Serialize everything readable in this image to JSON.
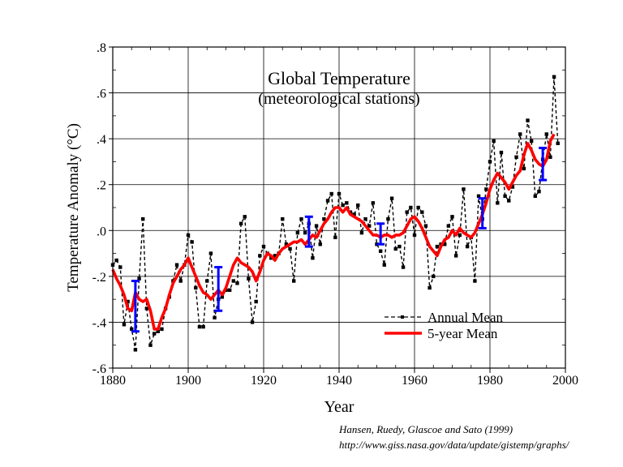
{
  "chart_data": {
    "type": "line",
    "title": "Global Temperature",
    "subtitle": "(meteorological stations)",
    "xlabel": "Year",
    "ylabel": "Temperature Anomaly (°C)",
    "xlim": [
      1880,
      2000
    ],
    "ylim": [
      -0.6,
      0.8
    ],
    "x_ticks": [
      "1880",
      "1900",
      "1920",
      "1940",
      "1960",
      "1980",
      "2000"
    ],
    "x_tick_values": [
      1880,
      1900,
      1920,
      1940,
      1960,
      1980,
      2000
    ],
    "y_ticks": [
      "-.6",
      "-.4",
      "-.2",
      ".0",
      ".2",
      ".4",
      ".6",
      ".8"
    ],
    "y_tick_values": [
      -0.6,
      -0.4,
      -0.2,
      0.0,
      0.2,
      0.4,
      0.6,
      0.8
    ],
    "grid": true,
    "legend_position": "bottom-right",
    "series": [
      {
        "name": "Annual Mean",
        "color": "#000000",
        "style": "dashed-with-square-markers",
        "x": [
          1880,
          1881,
          1882,
          1883,
          1884,
          1885,
          1886,
          1887,
          1888,
          1889,
          1890,
          1891,
          1892,
          1893,
          1894,
          1895,
          1896,
          1897,
          1898,
          1899,
          1900,
          1901,
          1902,
          1903,
          1904,
          1905,
          1906,
          1907,
          1908,
          1909,
          1910,
          1911,
          1912,
          1913,
          1914,
          1915,
          1916,
          1917,
          1918,
          1919,
          1920,
          1921,
          1922,
          1923,
          1924,
          1925,
          1926,
          1927,
          1928,
          1929,
          1930,
          1931,
          1932,
          1933,
          1934,
          1935,
          1936,
          1937,
          1938,
          1939,
          1940,
          1941,
          1942,
          1943,
          1944,
          1945,
          1946,
          1947,
          1948,
          1949,
          1950,
          1951,
          1952,
          1953,
          1954,
          1955,
          1956,
          1957,
          1958,
          1959,
          1960,
          1961,
          1962,
          1963,
          1964,
          1965,
          1966,
          1967,
          1968,
          1969,
          1970,
          1971,
          1972,
          1973,
          1974,
          1975,
          1976,
          1977,
          1978,
          1979,
          1980,
          1981,
          1982,
          1983,
          1984,
          1985,
          1986,
          1987,
          1988,
          1989,
          1990,
          1991,
          1992,
          1993,
          1994,
          1995,
          1996,
          1997,
          1998
        ],
        "values": [
          -0.15,
          -0.13,
          -0.16,
          -0.41,
          -0.31,
          -0.43,
          -0.52,
          -0.21,
          0.05,
          -0.34,
          -0.5,
          -0.45,
          -0.44,
          -0.43,
          -0.34,
          -0.29,
          -0.22,
          -0.15,
          -0.22,
          -0.15,
          -0.02,
          -0.05,
          -0.25,
          -0.42,
          -0.42,
          -0.22,
          -0.1,
          -0.38,
          -0.3,
          -0.29,
          -0.26,
          -0.26,
          -0.22,
          -0.23,
          0.03,
          0.06,
          -0.21,
          -0.4,
          -0.31,
          -0.11,
          -0.07,
          -0.1,
          -0.12,
          -0.11,
          -0.1,
          0.05,
          -0.06,
          -0.08,
          -0.22,
          -0.01,
          0.05,
          -0.01,
          0.03,
          -0.12,
          0.02,
          -0.06,
          0.05,
          0.13,
          0.16,
          -0.03,
          0.16,
          0.11,
          0.12,
          0.08,
          0.07,
          0.11,
          -0.01,
          0.05,
          0.02,
          0.12,
          -0.06,
          -0.09,
          -0.15,
          0.05,
          0.14,
          -0.08,
          -0.07,
          -0.16,
          0.08,
          0.1,
          -0.02,
          0.1,
          0.08,
          0.02,
          -0.25,
          -0.2,
          -0.07,
          -0.06,
          -0.06,
          0.02,
          0.06,
          -0.11,
          -0.02,
          0.18,
          -0.07,
          -0.03,
          -0.22,
          0.15,
          0.05,
          0.18,
          0.3,
          0.39,
          0.12,
          0.34,
          0.15,
          0.13,
          0.19,
          0.32,
          0.42,
          0.27,
          0.48,
          0.39,
          0.15,
          0.17,
          0.31,
          0.42,
          0.32,
          0.67,
          0.38
        ]
      },
      {
        "name": "5-year Mean",
        "color": "#ff0000",
        "style": "solid-thick",
        "x": [
          1880,
          1881,
          1882,
          1883,
          1884,
          1885,
          1886,
          1887,
          1888,
          1889,
          1890,
          1891,
          1892,
          1893,
          1894,
          1895,
          1896,
          1897,
          1898,
          1899,
          1900,
          1901,
          1902,
          1903,
          1904,
          1905,
          1906,
          1907,
          1908,
          1909,
          1910,
          1911,
          1912,
          1913,
          1914,
          1915,
          1916,
          1917,
          1918,
          1919,
          1920,
          1921,
          1922,
          1923,
          1924,
          1925,
          1926,
          1927,
          1928,
          1929,
          1930,
          1931,
          1932,
          1933,
          1934,
          1935,
          1936,
          1937,
          1938,
          1939,
          1940,
          1941,
          1942,
          1943,
          1944,
          1945,
          1946,
          1947,
          1948,
          1949,
          1950,
          1951,
          1952,
          1953,
          1954,
          1955,
          1956,
          1957,
          1958,
          1959,
          1960,
          1961,
          1962,
          1963,
          1964,
          1965,
          1966,
          1967,
          1968,
          1969,
          1970,
          1971,
          1972,
          1973,
          1974,
          1975,
          1976,
          1977,
          1978,
          1979,
          1980,
          1981,
          1982,
          1983,
          1984,
          1985,
          1986,
          1987,
          1988,
          1989,
          1990,
          1991,
          1992,
          1993,
          1994,
          1995,
          1996,
          1997
        ],
        "values": [
          -0.17,
          -0.21,
          -0.24,
          -0.28,
          -0.34,
          -0.35,
          -0.27,
          -0.3,
          -0.31,
          -0.3,
          -0.35,
          -0.43,
          -0.43,
          -0.38,
          -0.34,
          -0.28,
          -0.23,
          -0.2,
          -0.17,
          -0.15,
          -0.12,
          -0.16,
          -0.2,
          -0.24,
          -0.27,
          -0.28,
          -0.3,
          -0.28,
          -0.26,
          -0.28,
          -0.25,
          -0.2,
          -0.15,
          -0.12,
          -0.14,
          -0.15,
          -0.16,
          -0.18,
          -0.22,
          -0.18,
          -0.13,
          -0.1,
          -0.11,
          -0.13,
          -0.1,
          -0.08,
          -0.07,
          -0.06,
          -0.05,
          -0.05,
          -0.04,
          -0.06,
          -0.04,
          -0.02,
          -0.03,
          0.0,
          0.03,
          0.05,
          0.08,
          0.1,
          0.1,
          0.08,
          0.1,
          0.07,
          0.06,
          0.05,
          0.04,
          0.02,
          0.0,
          -0.02,
          -0.02,
          -0.03,
          -0.02,
          -0.02,
          -0.03,
          -0.02,
          -0.02,
          -0.01,
          0.02,
          0.05,
          0.06,
          0.04,
          0.01,
          -0.03,
          -0.07,
          -0.09,
          -0.11,
          -0.07,
          -0.04,
          -0.03,
          0.0,
          -0.02,
          0.01,
          -0.01,
          -0.02,
          -0.03,
          -0.01,
          0.03,
          0.07,
          0.12,
          0.18,
          0.22,
          0.25,
          0.23,
          0.21,
          0.18,
          0.21,
          0.24,
          0.26,
          0.33,
          0.38,
          0.35,
          0.31,
          0.29,
          0.28,
          0.31,
          0.39,
          0.42
        ]
      }
    ],
    "error_bars": {
      "color": "#0000ff",
      "points": [
        {
          "x": 1886,
          "low": -0.44,
          "high": -0.22
        },
        {
          "x": 1908,
          "low": -0.35,
          "high": -0.16
        },
        {
          "x": 1932,
          "low": -0.07,
          "high": 0.06
        },
        {
          "x": 1951,
          "low": -0.06,
          "high": 0.03
        },
        {
          "x": 1978,
          "low": 0.01,
          "high": 0.14
        },
        {
          "x": 1994,
          "low": 0.22,
          "high": 0.36
        }
      ]
    }
  },
  "credit": {
    "line1": "Hansen, Ruedy, Glascoe and Sato (1999)",
    "line2": "http://www.giss.nasa.gov/data/update/gistemp/graphs/"
  }
}
